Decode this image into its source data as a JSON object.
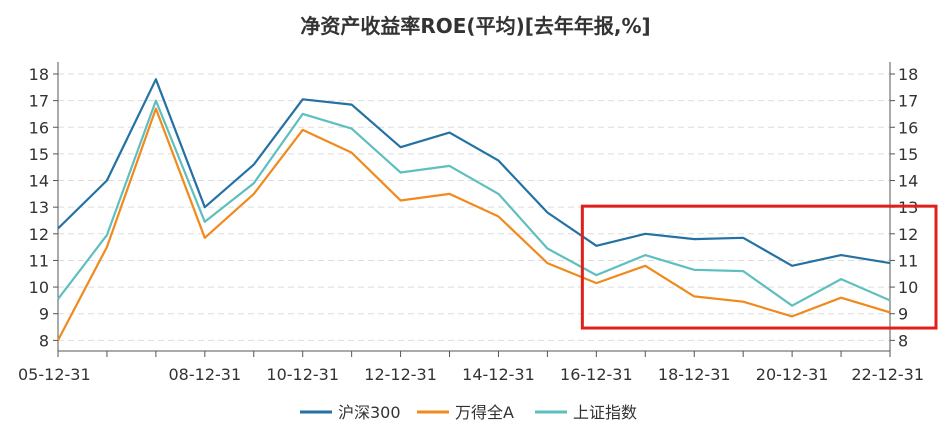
{
  "chart_data": {
    "type": "line",
    "title": "净资产收益率ROE(平均)[去年年报,%]",
    "x": [
      "05-12-31",
      "06-12-31",
      "07-12-31",
      "08-12-31",
      "09-12-31",
      "10-12-31",
      "11-12-31",
      "12-12-31",
      "13-12-31",
      "14-12-31",
      "15-12-31",
      "16-12-31",
      "17-12-31",
      "18-12-31",
      "19-12-31",
      "20-12-31",
      "21-12-31",
      "22-12-31"
    ],
    "x_tick_labels": [
      "05-12-31",
      "",
      "",
      "08-12-31",
      "",
      "10-12-31",
      "",
      "12-12-31",
      "",
      "14-12-31",
      "",
      "16-12-31",
      "",
      "18-12-31",
      "",
      "20-12-31",
      "",
      "22-12-31"
    ],
    "y_ticks": [
      8,
      9,
      10,
      11,
      12,
      13,
      14,
      15,
      16,
      17,
      18
    ],
    "ylim": [
      7.6,
      18.3
    ],
    "grid": true,
    "legend_position": "bottom",
    "series": [
      {
        "name": "沪深300",
        "color": "#2471a3",
        "values": [
          12.2,
          14.0,
          17.8,
          13.0,
          14.6,
          17.05,
          16.85,
          15.25,
          15.8,
          14.75,
          12.8,
          11.55,
          12.0,
          11.8,
          11.85,
          10.8,
          11.2,
          10.9
        ]
      },
      {
        "name": "万得全A",
        "color": "#f08a1d",
        "values": [
          8.0,
          11.5,
          16.7,
          11.85,
          13.5,
          15.9,
          15.05,
          13.25,
          13.5,
          12.65,
          10.9,
          10.15,
          10.8,
          9.65,
          9.45,
          8.9,
          9.6,
          9.05
        ]
      },
      {
        "name": "上证指数",
        "color": "#5fbfbf",
        "values": [
          9.55,
          11.95,
          17.0,
          12.45,
          13.9,
          16.5,
          15.95,
          14.3,
          14.55,
          13.5,
          11.45,
          10.45,
          11.2,
          10.65,
          10.6,
          9.3,
          10.3,
          9.5
        ]
      }
    ],
    "annotation": {
      "shape": "rectangle",
      "color": "#e0201b",
      "x_from": "16-12-31",
      "x_to": "22-12-31",
      "y_from": 8.8,
      "y_to": 12.7
    }
  }
}
